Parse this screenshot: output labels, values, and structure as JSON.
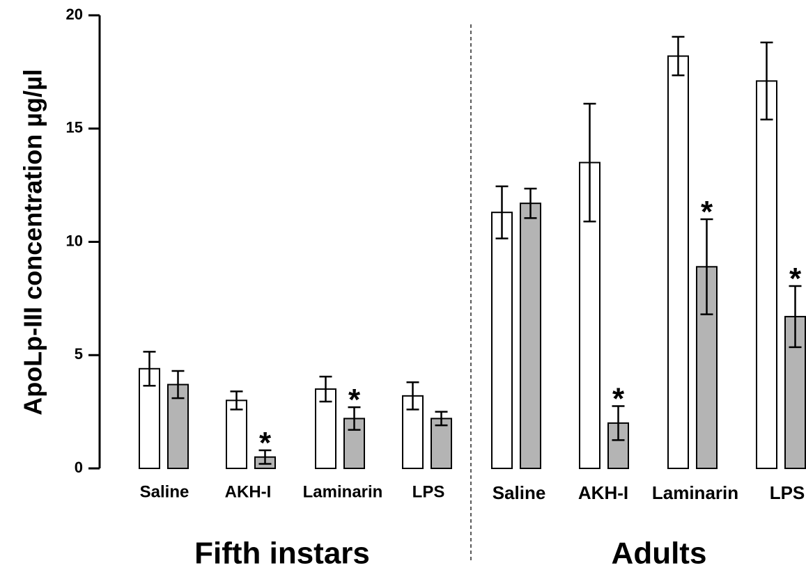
{
  "chart_data": {
    "type": "bar",
    "ylabel": "ApoLp-III concentration µg/µl",
    "ylim": [
      0,
      20
    ],
    "yticks": [
      0,
      5,
      10,
      15,
      20
    ],
    "grid": false,
    "colors": {
      "open": "#ffffff",
      "shaded": "#b4b4b4"
    },
    "groups": [
      {
        "label": "Fifth instars",
        "categories": [
          "Saline",
          "AKH-I",
          "Laminarin",
          "LPS"
        ],
        "series": [
          {
            "fill": "open",
            "values": [
              4.4,
              3.0,
              3.5,
              3.2
            ],
            "errors": [
              0.75,
              0.4,
              0.55,
              0.6
            ],
            "significant": [
              false,
              false,
              false,
              false
            ]
          },
          {
            "fill": "shaded",
            "values": [
              3.7,
              0.5,
              2.2,
              2.2
            ],
            "errors": [
              0.6,
              0.3,
              0.5,
              0.3
            ],
            "significant": [
              false,
              true,
              true,
              false
            ]
          }
        ]
      },
      {
        "label": "Adults",
        "categories": [
          "Saline",
          "AKH-I",
          "Laminarin",
          "LPS"
        ],
        "series": [
          {
            "fill": "open",
            "values": [
              11.3,
              13.5,
              18.2,
              17.1
            ],
            "errors": [
              1.15,
              2.6,
              0.85,
              1.7
            ],
            "significant": [
              false,
              false,
              false,
              false
            ]
          },
          {
            "fill": "shaded",
            "values": [
              11.7,
              2.0,
              8.9,
              6.7
            ],
            "errors": [
              0.65,
              0.75,
              2.1,
              1.35
            ],
            "significant": [
              false,
              true,
              true,
              true
            ]
          }
        ]
      }
    ],
    "significance_marker": "*"
  }
}
